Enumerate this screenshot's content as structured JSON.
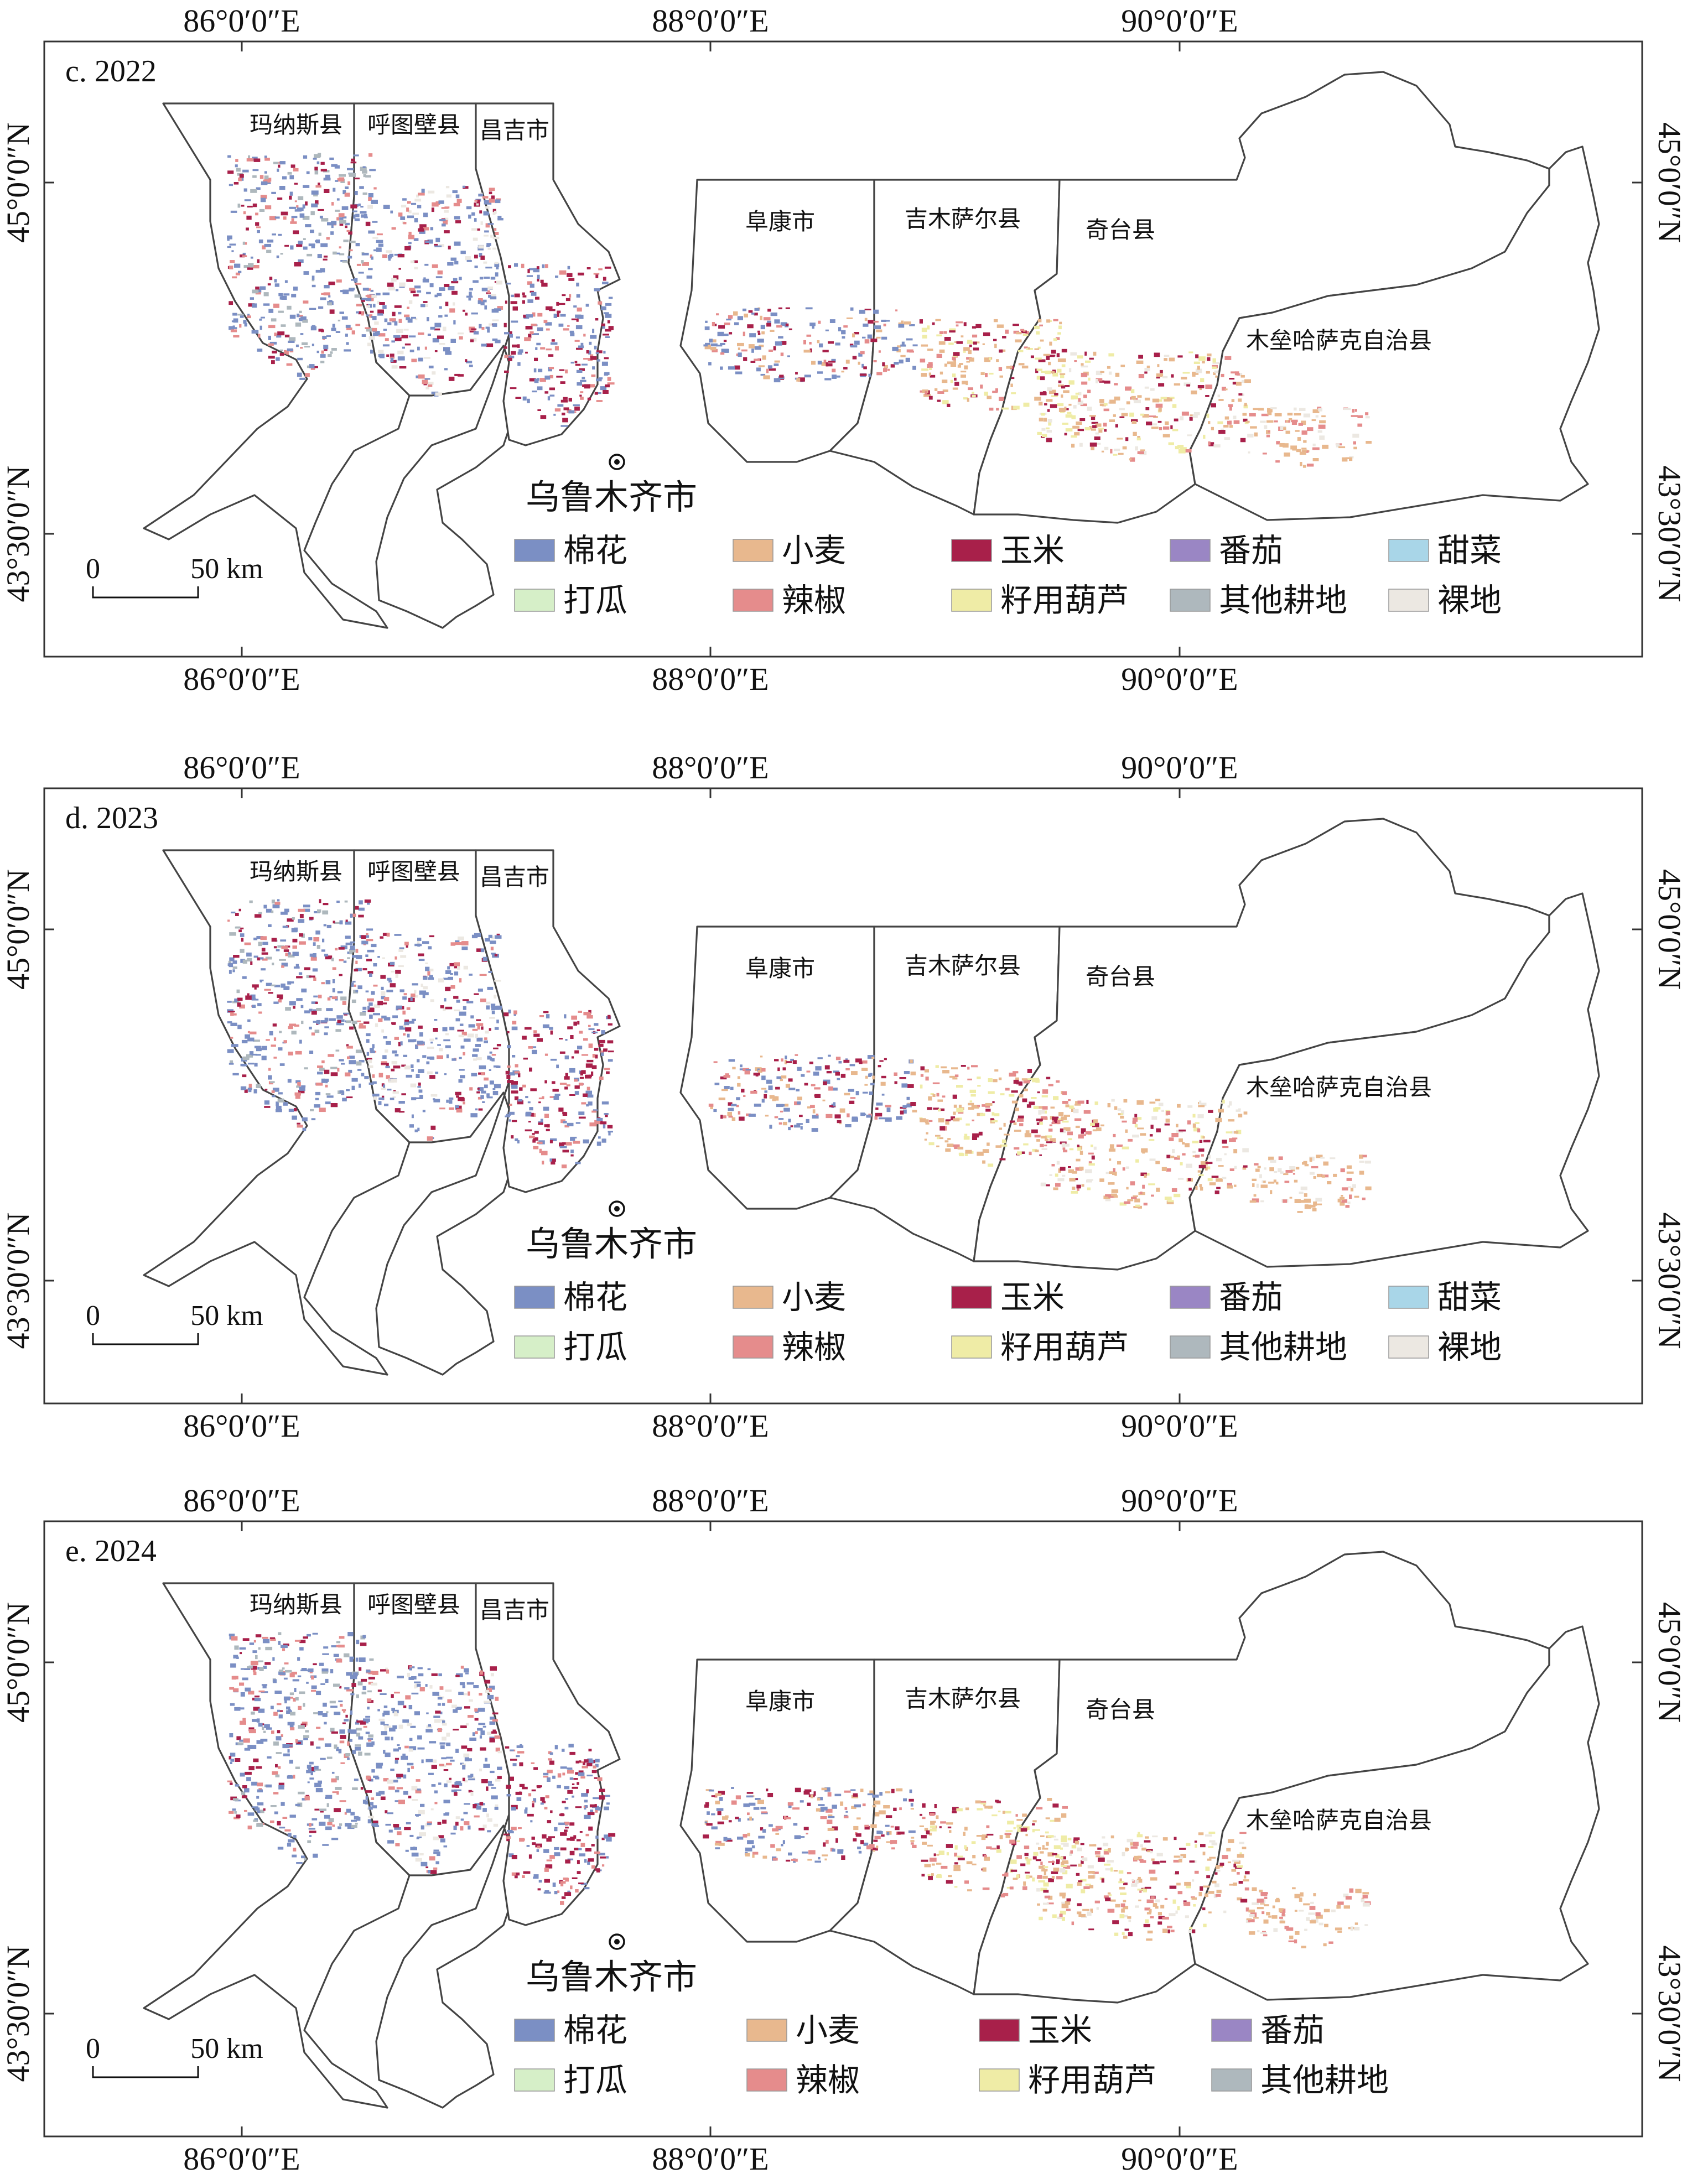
{
  "map": {
    "longitude_ticks": [
      "86°0′0″E",
      "88°0′0″E",
      "90°0′0″E"
    ],
    "latitude_ticks": [
      "45°0′0″N",
      "43°30′0″N"
    ],
    "counties": [
      "玛纳斯县",
      "呼图壁县",
      "昌吉市",
      "阜康市",
      "吉木萨尔县",
      "奇台县",
      "木垒哈萨克自治县"
    ],
    "city": "乌鲁木齐市",
    "scale_bar": {
      "zero": "0",
      "label": "50 km"
    },
    "crop_colors": {
      "棉花": "#7b8fc4",
      "小麦": "#e8b88e",
      "玉米": "#a8204a",
      "番茄": "#9a86c4",
      "甜菜": "#a9d6e8",
      "打瓜": "#d6efc8",
      "辣椒": "#e58c8c",
      "籽用葫芦": "#efeca6",
      "其他耕地": "#aeb8bd",
      "裸地": "#ece8e2"
    }
  },
  "panels": [
    {
      "title": "c. 2022",
      "legend": [
        "棉花",
        "小麦",
        "玉米",
        "番茄",
        "甜菜",
        "打瓜",
        "辣椒",
        "籽用葫芦",
        "其他耕地",
        "裸地"
      ]
    },
    {
      "title": "d. 2023",
      "legend": [
        "棉花",
        "小麦",
        "玉米",
        "番茄",
        "甜菜",
        "打瓜",
        "辣椒",
        "籽用葫芦",
        "其他耕地",
        "裸地"
      ]
    },
    {
      "title": "e. 2024",
      "legend": [
        "棉花",
        "小麦",
        "玉米",
        "番茄",
        "打瓜",
        "辣椒",
        "籽用葫芦",
        "其他耕地"
      ]
    }
  ]
}
